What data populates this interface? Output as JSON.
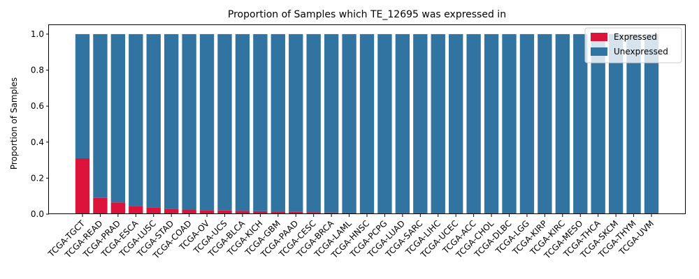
{
  "chart_data": {
    "type": "bar",
    "stacked": true,
    "title": "Proportion of Samples which TE_12695 was expressed in",
    "ylabel": "Proportion of Samples",
    "xlabel": "",
    "ylim": [
      0,
      1.05
    ],
    "yticks": [
      "0.0",
      "0.2",
      "0.4",
      "0.6",
      "0.8",
      "1.0"
    ],
    "categories": [
      "TCGA-TGCT",
      "TCGA-READ",
      "TCGA-PRAD",
      "TCGA-ESCA",
      "TCGA-LUSC",
      "TCGA-STAD",
      "TCGA-COAD",
      "TCGA-OV",
      "TCGA-UCS",
      "TCGA-BLCA",
      "TCGA-KICH",
      "TCGA-GBM",
      "TCGA-PAAD",
      "TCGA-CESC",
      "TCGA-BRCA",
      "TCGA-LAML",
      "TCGA-HNSC",
      "TCGA-PCPG",
      "TCGA-LUAD",
      "TCGA-SARC",
      "TCGA-LIHC",
      "TCGA-UCEC",
      "TCGA-ACC",
      "TCGA-CHOL",
      "TCGA-DLBC",
      "TCGA-LGG",
      "TCGA-KIRP",
      "TCGA-KIRC",
      "TCGA-MESO",
      "TCGA-THCA",
      "TCGA-SKCM",
      "TCGA-THYM",
      "TCGA-UVM"
    ],
    "series": [
      {
        "name": "Expressed",
        "color": "#dc143c",
        "values": [
          0.31,
          0.09,
          0.065,
          0.045,
          0.035,
          0.03,
          0.025,
          0.022,
          0.02,
          0.018,
          0.016,
          0.015,
          0.012,
          0.011,
          0.009,
          0.008,
          0.008,
          0.007,
          0.007,
          0.004,
          0.004,
          0.003,
          0,
          0,
          0,
          0,
          0,
          0,
          0,
          0,
          0,
          0,
          0
        ]
      },
      {
        "name": "Unexpressed",
        "color": "#3274a1",
        "values": [
          0.69,
          0.91,
          0.935,
          0.955,
          0.965,
          0.97,
          0.975,
          0.978,
          0.98,
          0.982,
          0.984,
          0.985,
          0.988,
          0.989,
          0.991,
          0.992,
          0.992,
          0.993,
          0.993,
          0.996,
          0.996,
          0.997,
          1,
          1,
          1,
          1,
          1,
          1,
          1,
          1,
          1,
          1,
          1
        ]
      }
    ],
    "legend": {
      "position": "top-right",
      "entries": [
        "Expressed",
        "Unexpressed"
      ]
    },
    "grid": false
  }
}
